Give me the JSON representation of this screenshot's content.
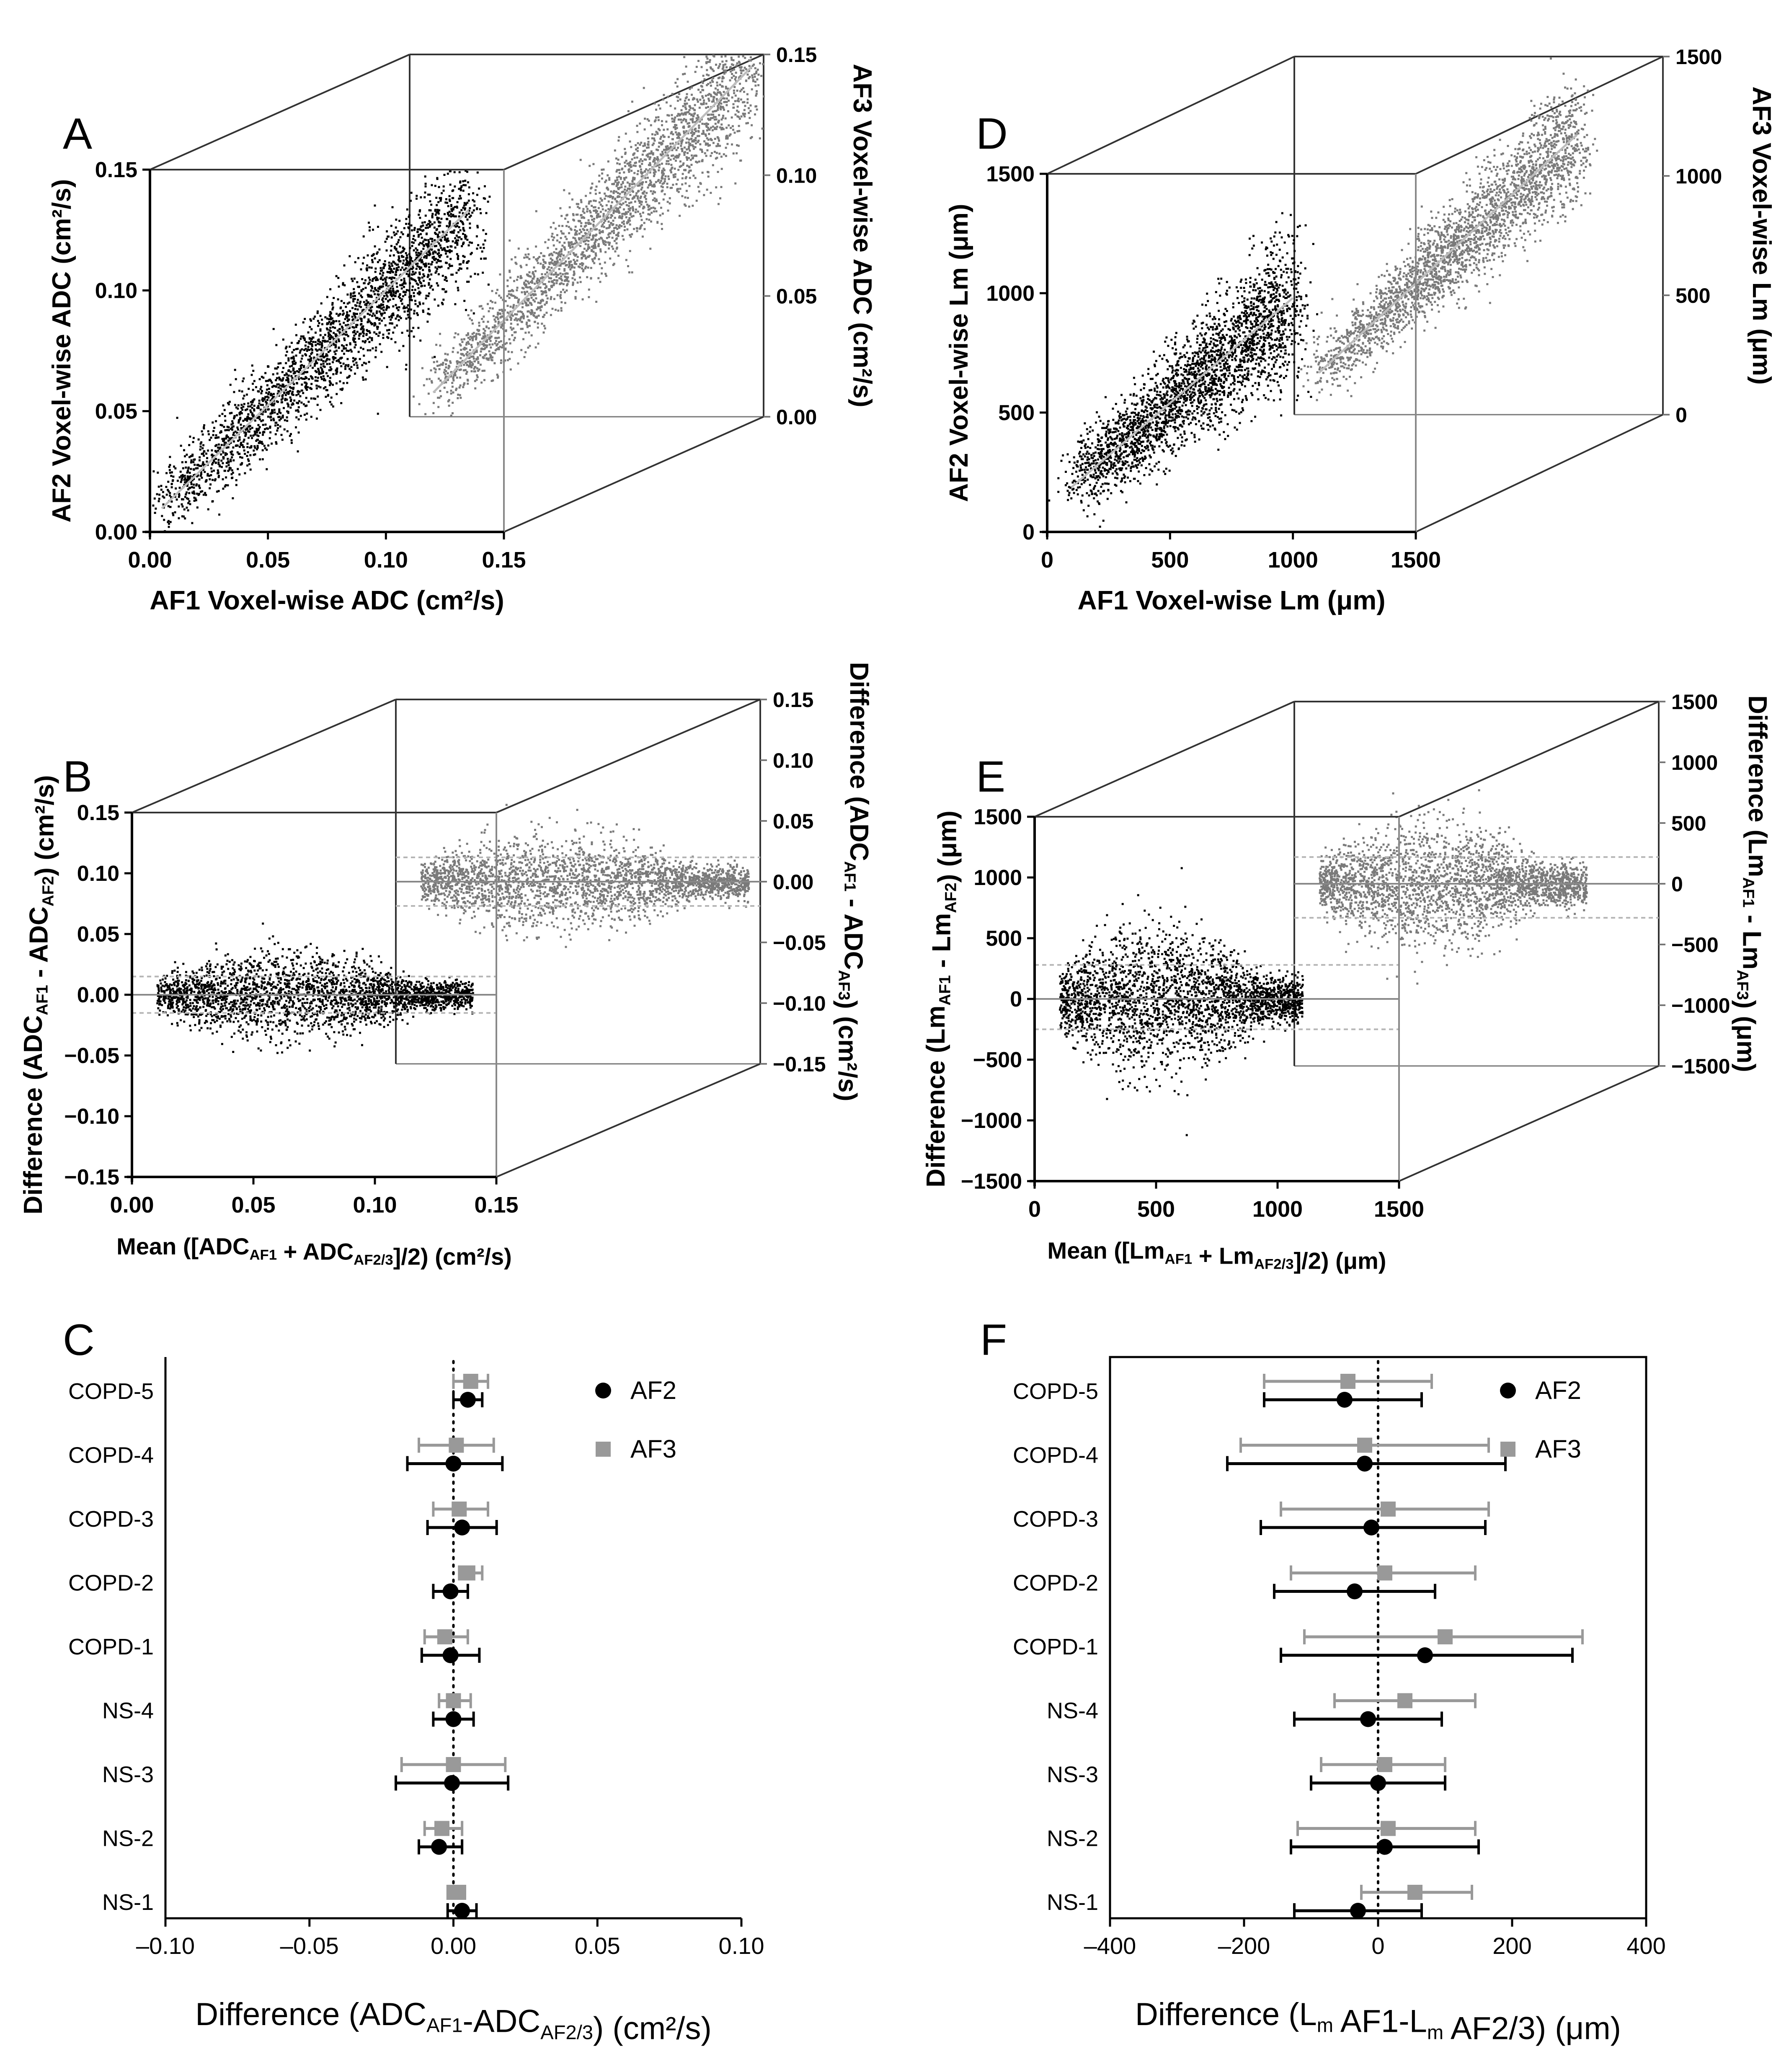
{
  "figure": {
    "colors": {
      "af2": "#000000",
      "af3": "#7a7a7a",
      "af3_light": "#a8a8a8",
      "axis": "#000000",
      "frame": "#333333",
      "regression": "#bdbdbd",
      "loa": "#b5b5b5"
    }
  },
  "chart_data": [
    {
      "id": "A",
      "panel_label": "A",
      "type": "scatter",
      "title": "",
      "xlabel": "AF1 Voxel-wise ADC (cm²/s)",
      "ylabel": "AF2 Voxel-wise ADC (cm²/s)",
      "ylabel_right": "AF3 Voxel-wise ADC (cm²/s)",
      "xlim": [
        0,
        0.15
      ],
      "ylim": [
        0,
        0.15
      ],
      "x_ticks": [
        "0.00",
        "0.05",
        "0.10",
        "0.15"
      ],
      "y_ticks": [
        "0.00",
        "0.05",
        "0.10",
        "0.15"
      ],
      "y_right_ticks": [
        "0.00",
        "0.05",
        "0.10",
        "0.15"
      ],
      "series": [
        {
          "name": "AF2 vs AF1",
          "color": "#000000",
          "center_x": [
            0.005,
            0.135
          ],
          "center_y_intercept": 0.005,
          "slope": 0.95,
          "spread": 0.012,
          "n": 2600,
          "seed": 11
        },
        {
          "name": "AF3 vs AF1",
          "color": "#7a7a7a",
          "center_x": [
            0.01,
            0.145
          ],
          "center_y_intercept": 0.0,
          "slope": 1.0,
          "spread": 0.012,
          "n": 2600,
          "seed": 23
        }
      ]
    },
    {
      "id": "B",
      "panel_label": "B",
      "type": "scatter",
      "title": "",
      "xlabel": "Mean ([ADC_AF1 + ADC_AF2/3]/2) (cm²/s)",
      "ylabel": "Difference (ADC_AF1 - ADC_AF2) (cm²/s)",
      "ylabel_right": "Difference (ADC_AF1 - ADC_AF3) (cm²/s)",
      "xlim": [
        0,
        0.15
      ],
      "ylim": [
        -0.15,
        0.15
      ],
      "x_ticks": [
        "0.00",
        "0.05",
        "0.10",
        "0.15"
      ],
      "y_ticks": [
        "-0.15",
        "-0.10",
        "-0.05",
        "0.00",
        "0.05",
        "0.10",
        "0.15"
      ],
      "y_right_ticks": [
        "-0.15",
        "-0.10",
        "-0.05",
        "0.00",
        "0.05",
        "0.10",
        "0.15"
      ],
      "series": [
        {
          "name": "AF1-AF2",
          "color": "#000000",
          "x_range": [
            0.01,
            0.14
          ],
          "mean_diff": 0.0,
          "loa": [
            -0.015,
            0.015
          ],
          "spread": 0.018,
          "n": 2600,
          "seed": 37
        },
        {
          "name": "AF1-AF3",
          "color": "#7a7a7a",
          "x_range": [
            0.01,
            0.145
          ],
          "mean_diff": 0.0,
          "loa": [
            -0.02,
            0.02
          ],
          "spread": 0.02,
          "n": 2600,
          "seed": 41
        }
      ]
    },
    {
      "id": "C",
      "panel_label": "C",
      "type": "errorbar",
      "xlabel": "Difference (ADC_AF1-ADC_AF2/3) (cm²/s)",
      "xlim": [
        -0.1,
        0.1
      ],
      "x_ticks": [
        "–0.10",
        "–0.05",
        "0.00",
        "0.05",
        "0.10"
      ],
      "categories": [
        "COPD-5",
        "COPD-4",
        "COPD-3",
        "COPD-2",
        "COPD-1",
        "NS-4",
        "NS-3",
        "NS-2",
        "NS-1"
      ],
      "legend": [
        "AF2",
        "AF3"
      ],
      "series": [
        {
          "name": "AF2",
          "color": "#000000",
          "marker": "circle",
          "mean": [
            0.005,
            0.0,
            0.003,
            -0.001,
            -0.001,
            0.0,
            -0.0005,
            -0.005,
            0.003
          ],
          "lower": [
            0.0,
            -0.016,
            -0.009,
            -0.007,
            -0.011,
            -0.007,
            -0.02,
            -0.012,
            -0.002
          ],
          "upper": [
            0.01,
            0.017,
            0.015,
            0.005,
            0.009,
            0.007,
            0.019,
            0.003,
            0.008
          ]
        },
        {
          "name": "AF3",
          "color": "#999999",
          "marker": "square",
          "mean": [
            0.006,
            0.001,
            0.002,
            0.005,
            -0.003,
            0.0,
            0.0,
            -0.004,
            0.001
          ],
          "lower": [
            0.0,
            -0.012,
            -0.007,
            0.002,
            -0.01,
            -0.005,
            -0.018,
            -0.01,
            -0.002
          ],
          "upper": [
            0.012,
            0.014,
            0.012,
            0.01,
            0.005,
            0.006,
            0.018,
            0.003,
            0.004
          ]
        }
      ]
    },
    {
      "id": "D",
      "panel_label": "D",
      "type": "scatter",
      "title": "",
      "xlabel": "AF1 Voxel-wise Lm (μm)",
      "ylabel": "AF2 Voxel-wise Lm (μm)",
      "ylabel_right": "AF3 Voxel-wise Lm (μm)",
      "xlim": [
        0,
        1500
      ],
      "ylim": [
        0,
        1500
      ],
      "x_ticks": [
        "0",
        "500",
        "1000",
        "1500"
      ],
      "y_ticks": [
        "0",
        "500",
        "1000",
        "1500"
      ],
      "y_right_ticks": [
        "0",
        "500",
        "1000",
        "1500"
      ],
      "series": [
        {
          "name": "AF2 vs AF1",
          "color": "#000000",
          "center_x": [
            100,
            1000
          ],
          "center_y_intercept": 100,
          "slope": 0.88,
          "spread": 130,
          "n": 2600,
          "seed": 53
        },
        {
          "name": "AF3 vs AF1",
          "color": "#7a7a7a",
          "center_x": [
            100,
            1150
          ],
          "center_y_intercept": 80,
          "slope": 0.95,
          "spread": 110,
          "n": 2600,
          "seed": 67
        }
      ]
    },
    {
      "id": "E",
      "panel_label": "E",
      "type": "scatter",
      "title": "",
      "xlabel": "Mean ([Lm_AF1 + Lm_AF2/3]/2) (μm)",
      "ylabel": "Difference (Lm_AF1 - Lm_AF2) (μm)",
      "ylabel_right": "Difference (Lm_AF1 - Lm_AF3) (μm)",
      "xlim": [
        0,
        1500
      ],
      "ylim": [
        -1500,
        1500
      ],
      "x_ticks": [
        "0",
        "500",
        "1000",
        "1500"
      ],
      "y_ticks": [
        "-1500",
        "-1000",
        "-500",
        "0",
        "500",
        "1000",
        "1500"
      ],
      "y_right_ticks": [
        "-1500",
        "-1000",
        "-500",
        "0",
        "500",
        "1000",
        "1500"
      ],
      "series": [
        {
          "name": "AF1-AF2",
          "color": "#000000",
          "x_range": [
            100,
            1100
          ],
          "mean_diff": 0,
          "loa": [
            -250,
            280
          ],
          "spread": 300,
          "n": 2600,
          "seed": 71
        },
        {
          "name": "AF1-AF3",
          "color": "#7a7a7a",
          "x_range": [
            100,
            1200
          ],
          "mean_diff": 0,
          "loa": [
            -280,
            220
          ],
          "spread": 260,
          "n": 2600,
          "seed": 83
        }
      ]
    },
    {
      "id": "F",
      "panel_label": "F",
      "type": "errorbar",
      "xlabel": "Difference (L_m AF1-L_m AF2/3) (μm)",
      "xlim": [
        -400,
        400
      ],
      "x_ticks": [
        "–400",
        "–200",
        "0",
        "200",
        "400"
      ],
      "categories": [
        "COPD-5",
        "COPD-4",
        "COPD-3",
        "COPD-2",
        "COPD-1",
        "NS-4",
        "NS-3",
        "NS-2",
        "NS-1"
      ],
      "legend": [
        "AF2",
        "AF3"
      ],
      "series": [
        {
          "name": "AF2",
          "color": "#000000",
          "marker": "circle",
          "mean": [
            -50,
            -20,
            -10,
            -35,
            70,
            -15,
            0,
            10,
            -30
          ],
          "lower": [
            -170,
            -225,
            -175,
            -155,
            -145,
            -125,
            -100,
            -130,
            -125
          ],
          "upper": [
            65,
            190,
            160,
            85,
            290,
            95,
            100,
            150,
            65
          ]
        },
        {
          "name": "AF3",
          "color": "#999999",
          "marker": "square",
          "mean": [
            -45,
            -20,
            15,
            10,
            100,
            40,
            10,
            15,
            55
          ],
          "lower": [
            -170,
            -205,
            -145,
            -130,
            -110,
            -65,
            -85,
            -120,
            -25
          ],
          "upper": [
            80,
            165,
            165,
            145,
            305,
            145,
            100,
            145,
            140
          ]
        }
      ]
    }
  ]
}
